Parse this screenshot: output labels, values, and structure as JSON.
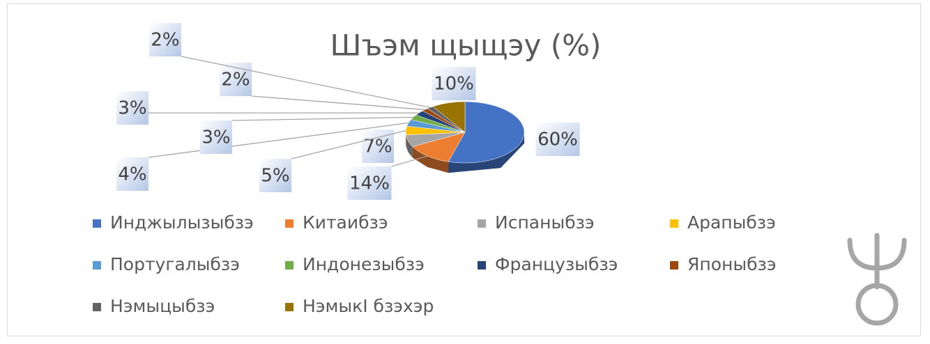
{
  "chart_data": {
    "type": "pie3d",
    "title": "Шъэм щыщэу (%)",
    "categories": [
      "Инджылызыбзэ",
      "Китаибзэ",
      "Испаныбзэ",
      "Арапыбзэ",
      "Португалыбзэ",
      "Индонезыбзэ",
      "Французыбзэ",
      "Японыбзэ",
      "Нэмыцыбзэ",
      "НэмыкI бзэхэр"
    ],
    "values": [
      60,
      14,
      7,
      5,
      4,
      3,
      3,
      2,
      2,
      10
    ],
    "value_labels": [
      "60%",
      "14%",
      "7%",
      "5%",
      "4%",
      "3%",
      "3%",
      "2%",
      "2%",
      "10%"
    ],
    "colors": [
      "#4472c4",
      "#ed7d31",
      "#a5a5a5",
      "#ffc000",
      "#5b9bd5",
      "#70ad47",
      "#264478",
      "#9e480e",
      "#636363",
      "#997300"
    ],
    "legend": "bottom"
  }
}
